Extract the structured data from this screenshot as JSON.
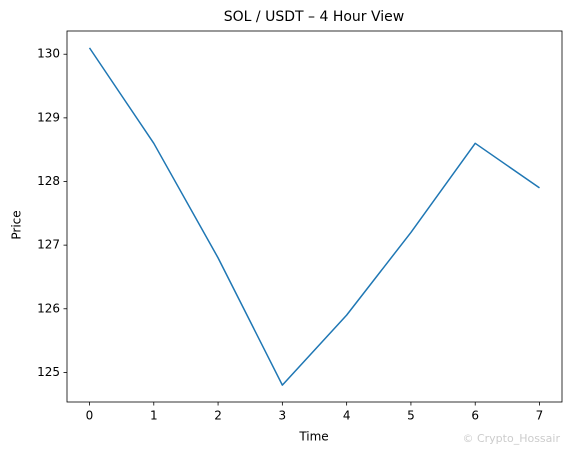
{
  "chart_data": {
    "type": "line",
    "title": "SOL / USDT – 4 Hour View",
    "x_label": "Time",
    "y_label": "Price",
    "x": [
      0,
      1,
      2,
      3,
      4,
      5,
      6,
      7
    ],
    "values": [
      130.1,
      128.6,
      126.8,
      124.8,
      125.9,
      127.2,
      128.6,
      127.9
    ],
    "color": "#1f77b4",
    "xlim": [
      -0.35,
      7.35
    ],
    "xticks": [
      0,
      1,
      2,
      3,
      4,
      5,
      6,
      7
    ],
    "ylim": [
      124.535,
      130.365
    ],
    "yticks": [
      125,
      126,
      127,
      128,
      129,
      130
    ],
    "grid": false,
    "watermark": "© Crypto_Hossair"
  }
}
